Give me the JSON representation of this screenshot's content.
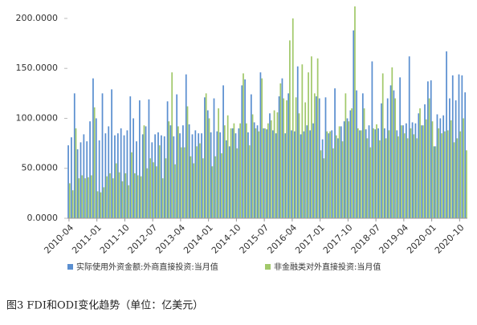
{
  "chart_data": {
    "type": "bar",
    "caption": "图3  FDI和ODI变化趋势（单位：亿美元）",
    "categories": [
      "2010-04",
      null,
      null,
      null,
      null,
      null,
      null,
      null,
      null,
      "2011-01",
      null,
      null,
      null,
      null,
      null,
      null,
      null,
      null,
      "2011-10",
      null,
      null,
      null,
      null,
      null,
      null,
      null,
      null,
      "2012-07",
      null,
      null,
      null,
      null,
      null,
      null,
      null,
      null,
      "2013-04",
      null,
      null,
      null,
      null,
      null,
      null,
      null,
      null,
      "2014-01",
      null,
      null,
      null,
      null,
      null,
      null,
      null,
      null,
      "2014-10",
      null,
      null,
      null,
      null,
      null,
      null,
      null,
      null,
      "2015-07",
      null,
      null,
      null,
      null,
      null,
      null,
      null,
      null,
      "2016-04",
      null,
      null,
      null,
      null,
      null,
      null,
      null,
      null,
      "2017-01",
      null,
      null,
      null,
      null,
      null,
      null,
      null,
      null,
      "2017-10",
      null,
      null,
      null,
      null,
      null,
      null,
      null,
      null,
      "2018-07",
      null,
      null,
      null,
      null,
      null,
      null,
      null,
      null,
      "2019-04",
      null,
      null,
      null,
      null,
      null,
      null,
      null,
      null,
      "2020-01",
      null,
      null,
      null,
      null,
      null,
      null,
      null,
      null,
      "2020-10",
      null,
      null
    ],
    "series": [
      {
        "name": "实际使用外资金额:外商直接投资:当月值",
        "color": "#5b8fd0",
        "values": [
          73,
          81,
          125,
          69,
          76,
          84,
          77,
          97,
          140,
          100,
          78,
          125,
          85,
          92,
          129,
          83,
          85,
          90,
          83,
          88,
          122,
          100,
          77,
          118,
          84,
          92,
          119,
          76,
          84,
          86,
          83,
          82,
          117,
          93,
          82,
          124,
          85,
          93,
          144,
          94,
          84,
          88,
          85,
          85,
          121,
          108,
          86,
          120,
          87,
          86,
          133,
          78,
          72,
          90,
          85,
          90,
          133,
          139,
          86,
          124,
          96,
          93,
          146,
          90,
          89,
          105,
          88,
          85,
          122,
          140,
          85,
          125,
          88,
          87,
          152,
          84,
          87,
          93,
          88,
          95,
          122,
          120,
          79,
          121,
          85,
          88,
          130,
          80,
          92,
          97,
          100,
          108,
          188,
          128,
          88,
          125,
          89,
          93,
          157,
          89,
          90,
          115,
          90,
          120,
          133,
          128,
          88,
          141,
          93,
          95,
          162,
          96,
          95,
          105,
          93,
          114,
          137,
          138,
          72,
          104,
          100,
          103,
          167,
          120,
          143,
          118,
          144,
          143,
          126
        ]
      },
      {
        "name": "非金融类对外直接投资:当月值",
        "color": "#a2c96b",
        "values": [
          35,
          28,
          90,
          40,
          43,
          40,
          41,
          43,
          111,
          27,
          26,
          31,
          42,
          45,
          40,
          55,
          46,
          37,
          45,
          33,
          66,
          45,
          43,
          42,
          93,
          50,
          60,
          56,
          52,
          73,
          40,
          60,
          97,
          146,
          54,
          92,
          71,
          71,
          112,
          62,
          55,
          72,
          75,
          60,
          125,
          100,
          52,
          62,
          110,
          65,
          93,
          103,
          90,
          95,
          70,
          95,
          145,
          95,
          73,
          104,
          90,
          87,
          140,
          90,
          95,
          98,
          108,
          106,
          135,
          120,
          118,
          178,
          200,
          121,
          105,
          154,
          116,
          146,
          162,
          125,
          160,
          68,
          60,
          87,
          87,
          70,
          83,
          92,
          77,
          125,
          97,
          110,
          212,
          90,
          88,
          110,
          80,
          71,
          90,
          94,
          78,
          145,
          80,
          88,
          151,
          120,
          82,
          93,
          85,
          80,
          90,
          84,
          80,
          110,
          93,
          99,
          120,
          97,
          72,
          90,
          85,
          87,
          88,
          98,
          76,
          80,
          87,
          100,
          68
        ]
      }
    ],
    "ylim": [
      0,
      212
    ],
    "yticks": [
      {
        "value": 0,
        "label": "0.0000"
      },
      {
        "value": 50,
        "label": "50.0000"
      },
      {
        "value": 100,
        "label": "100.0000"
      },
      {
        "value": 150,
        "label": "150.0000"
      },
      {
        "value": 200,
        "label": "200.0000"
      }
    ],
    "grid": false
  }
}
